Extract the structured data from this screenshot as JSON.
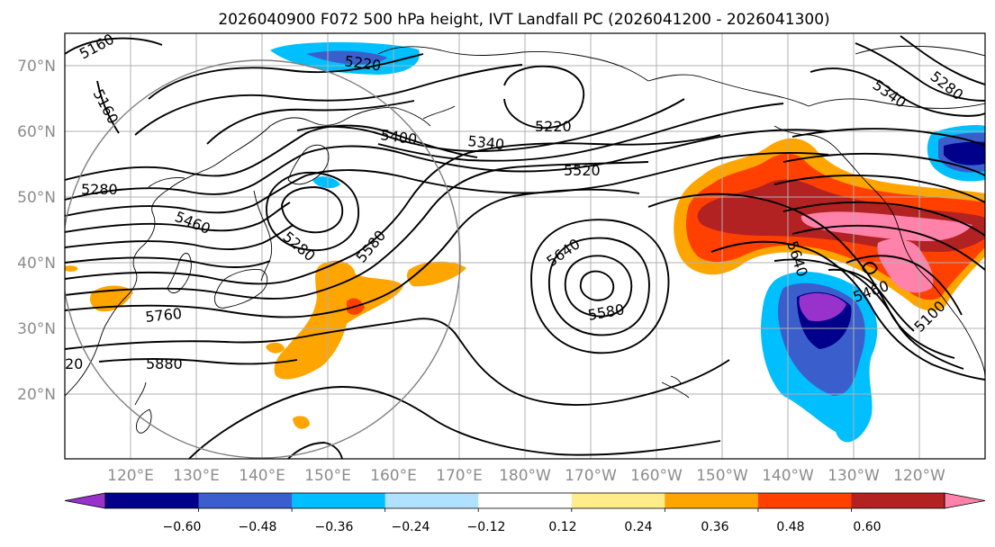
{
  "title": "2026040900 F072 500 hPa height, IVT Landfall PC (2026041200 - 2026041300)",
  "axes": {
    "lat_labels": [
      "70°N",
      "60°N",
      "50°N",
      "40°N",
      "30°N",
      "20°N"
    ],
    "lon_labels": [
      "120°E",
      "130°E",
      "140°E",
      "150°E",
      "160°E",
      "170°E",
      "180°W",
      "170°W",
      "160°W",
      "150°W",
      "140°W",
      "130°W",
      "120°W"
    ]
  },
  "contour_labels": {
    "c5160a": "5160",
    "c5160b": "5160",
    "c5220a": "5220",
    "c5220b": "5220",
    "c5280a": "5280",
    "c5280b": "5280",
    "c5340a": "5340",
    "c5340b": "5340",
    "c5400": "5400",
    "c5460a": "5460",
    "c5460b": "5460",
    "c5520": "5520",
    "c5580a": "5580",
    "c5580b": "5580",
    "c5640a": "5640",
    "c5640b": "5640",
    "c5760": "5760",
    "c5880": "5880",
    "c5100": "5100",
    "c5280c": "5280",
    "c20": "20"
  },
  "colorbar": {
    "ticks": [
      "−0.60",
      "−0.48",
      "−0.36",
      "−0.24",
      "−0.12",
      "0.12",
      "0.24",
      "0.36",
      "0.48",
      "0.60"
    ],
    "colors": [
      "#9932cc",
      "#00008b",
      "#3a5fcd",
      "#00bfff",
      "#b0e2ff",
      "#ffffff",
      "#ffec8b",
      "#ffa500",
      "#ff4000",
      "#b22222",
      "#ff82ab"
    ],
    "extend": "both"
  },
  "colors": {
    "contour": "#000000",
    "grid": "#b0b0b0",
    "axis_label": "#8c8c8c"
  }
}
